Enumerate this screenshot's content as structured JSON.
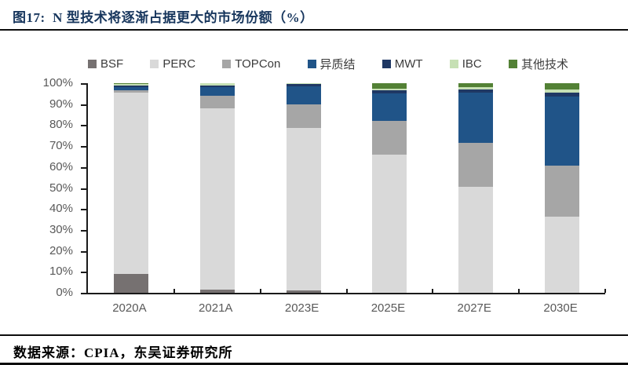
{
  "header": {
    "title": "图17:  N 型技术将逐渐占据更大的市场份额（%）"
  },
  "footer": {
    "source": "数据来源：CPIA，东吴证券研究所"
  },
  "colors": {
    "title_navy": "#17365d",
    "axis_line": "#1a1a1a",
    "tick_label_gray": "#595959"
  },
  "chart_data": {
    "type": "bar",
    "stacked": true,
    "title": "N 型技术将逐渐占据更大的市场份额（%）",
    "xlabel": "",
    "ylabel": "",
    "ylim": [
      0,
      100
    ],
    "ytick_step": 10,
    "ytick_labels": [
      "0%",
      "10%",
      "20%",
      "30%",
      "40%",
      "50%",
      "60%",
      "70%",
      "80%",
      "90%",
      "100%"
    ],
    "grid": false,
    "legend_position": "top",
    "categories": [
      "2020A",
      "2021A",
      "2023E",
      "2025E",
      "2027E",
      "2030E"
    ],
    "series": [
      {
        "name": "BSF",
        "color": "#767171",
        "values": [
          9,
          1.5,
          1,
          0,
          0,
          0
        ]
      },
      {
        "name": "PERC",
        "color": "#d9d9d9",
        "values": [
          86.5,
          86.5,
          77.5,
          66,
          50.5,
          36.5
        ]
      },
      {
        "name": "TOPCon",
        "color": "#a6a6a6",
        "values": [
          1,
          6,
          11.5,
          16,
          21,
          24
        ]
      },
      {
        "name": "异质结",
        "color": "#205488",
        "values": [
          1.5,
          4,
          8.5,
          13,
          24,
          33
        ]
      },
      {
        "name": "MWT",
        "color": "#1f3864",
        "values": [
          1,
          1,
          1,
          1.5,
          1.5,
          2
        ]
      },
      {
        "name": "IBC",
        "color": "#c6e0b4",
        "values": [
          0.7,
          1,
          0.5,
          1,
          1,
          1.5
        ]
      },
      {
        "name": "其他技术",
        "color": "#538135",
        "values": [
          0.3,
          0,
          0,
          2.5,
          2,
          3
        ]
      }
    ]
  }
}
